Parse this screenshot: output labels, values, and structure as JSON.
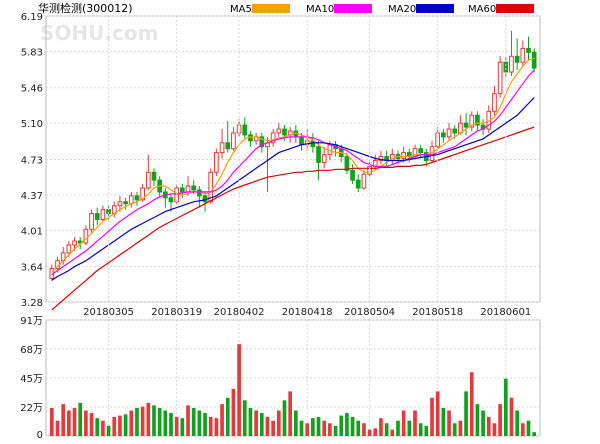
{
  "header": {
    "title": "华测检测(300012)",
    "watermark": "SOHU.com",
    "legend": [
      {
        "label": "MA5",
        "color": "#f5a000"
      },
      {
        "label": "MA10",
        "color": "#ff00ff"
      },
      {
        "label": "MA20",
        "color": "#0000c8"
      },
      {
        "label": "MA60",
        "color": "#e00000"
      }
    ]
  },
  "colors": {
    "up": "#e23b3b",
    "down": "#13a01e",
    "grid": "#d8d8d8"
  },
  "chart_data": [
    {
      "type": "candlestick",
      "title": "华测检测(300012)",
      "y_ticks": [
        6.19,
        5.83,
        5.46,
        5.1,
        4.73,
        4.37,
        4.01,
        3.64,
        3.28
      ],
      "ylim": [
        3.28,
        6.19
      ],
      "date_labels": [
        {
          "index": 10,
          "label": "20180305"
        },
        {
          "index": 22,
          "label": "20180319"
        },
        {
          "index": 33,
          "label": "20180402"
        },
        {
          "index": 45,
          "label": "20180418"
        },
        {
          "index": 56,
          "label": "20180504"
        },
        {
          "index": 68,
          "label": "20180518"
        },
        {
          "index": 80,
          "label": "20180601"
        }
      ],
      "candles": [
        [
          3.52,
          3.62,
          3.5,
          3.66
        ],
        [
          3.62,
          3.7,
          3.58,
          3.74
        ],
        [
          3.7,
          3.78,
          3.66,
          3.84
        ],
        [
          3.78,
          3.86,
          3.74,
          3.9
        ],
        [
          3.86,
          3.9,
          3.8,
          3.94
        ],
        [
          3.9,
          3.88,
          3.82,
          3.94
        ],
        [
          3.88,
          4.02,
          3.86,
          4.06
        ],
        [
          4.02,
          4.18,
          3.98,
          4.22
        ],
        [
          4.18,
          4.12,
          4.06,
          4.24
        ],
        [
          4.12,
          4.22,
          4.1,
          4.26
        ],
        [
          4.22,
          4.18,
          4.12,
          4.26
        ],
        [
          4.18,
          4.26,
          4.14,
          4.3
        ],
        [
          4.26,
          4.3,
          4.2,
          4.36
        ],
        [
          4.3,
          4.28,
          4.22,
          4.34
        ],
        [
          4.28,
          4.36,
          4.24,
          4.4
        ],
        [
          4.36,
          4.32,
          4.26,
          4.4
        ],
        [
          4.32,
          4.44,
          4.3,
          4.48
        ],
        [
          4.44,
          4.6,
          4.42,
          4.78
        ],
        [
          4.6,
          4.52,
          4.46,
          4.64
        ],
        [
          4.52,
          4.4,
          4.34,
          4.56
        ],
        [
          4.4,
          4.34,
          4.24,
          4.44
        ],
        [
          4.34,
          4.3,
          4.2,
          4.38
        ],
        [
          4.3,
          4.44,
          4.28,
          4.48
        ],
        [
          4.44,
          4.4,
          4.34,
          4.48
        ],
        [
          4.4,
          4.46,
          4.36,
          4.56
        ],
        [
          4.46,
          4.42,
          4.38,
          4.52
        ],
        [
          4.42,
          4.36,
          4.24,
          4.46
        ],
        [
          4.36,
          4.3,
          4.2,
          4.4
        ],
        [
          4.3,
          4.6,
          4.28,
          4.64
        ],
        [
          4.6,
          4.8,
          4.56,
          4.84
        ],
        [
          4.8,
          4.9,
          4.74,
          5.04
        ],
        [
          4.9,
          4.84,
          4.8,
          5.12
        ],
        [
          4.84,
          5.0,
          4.82,
          5.06
        ],
        [
          5.0,
          5.08,
          4.96,
          5.14
        ],
        [
          5.08,
          4.98,
          4.94,
          5.16
        ],
        [
          4.98,
          4.92,
          4.86,
          5.02
        ],
        [
          4.92,
          4.96,
          4.88,
          5.0
        ],
        [
          4.96,
          4.86,
          4.8,
          5.0
        ],
        [
          4.86,
          4.9,
          4.4,
          4.96
        ],
        [
          4.9,
          5.0,
          4.86,
          5.04
        ],
        [
          5.0,
          5.04,
          4.96,
          5.1
        ],
        [
          5.04,
          4.98,
          4.92,
          5.08
        ],
        [
          4.98,
          5.02,
          4.9,
          5.06
        ],
        [
          5.02,
          4.96,
          4.9,
          5.08
        ],
        [
          4.96,
          4.88,
          4.82,
          5.0
        ],
        [
          4.88,
          4.92,
          4.82,
          5.04
        ],
        [
          4.92,
          4.86,
          4.8,
          5.0
        ],
        [
          4.86,
          4.7,
          4.52,
          4.92
        ],
        [
          4.7,
          4.78,
          4.64,
          4.86
        ],
        [
          4.78,
          4.88,
          4.72,
          4.92
        ],
        [
          4.88,
          4.84,
          4.76,
          4.92
        ],
        [
          4.84,
          4.76,
          4.7,
          4.88
        ],
        [
          4.76,
          4.62,
          4.58,
          4.8
        ],
        [
          4.62,
          4.52,
          4.48,
          4.68
        ],
        [
          4.52,
          4.44,
          4.4,
          4.58
        ],
        [
          4.44,
          4.58,
          4.42,
          4.62
        ],
        [
          4.58,
          4.66,
          4.54,
          4.72
        ],
        [
          4.66,
          4.72,
          4.62,
          4.78
        ],
        [
          4.72,
          4.76,
          4.68,
          4.82
        ],
        [
          4.76,
          4.72,
          4.66,
          4.82
        ],
        [
          4.72,
          4.78,
          4.68,
          4.84
        ],
        [
          4.78,
          4.74,
          4.68,
          4.82
        ],
        [
          4.74,
          4.8,
          4.7,
          4.86
        ],
        [
          4.8,
          4.76,
          4.7,
          4.84
        ],
        [
          4.76,
          4.84,
          4.74,
          4.88
        ],
        [
          4.84,
          4.8,
          4.74,
          4.88
        ],
        [
          4.8,
          4.72,
          4.66,
          4.84
        ],
        [
          4.72,
          4.86,
          4.7,
          4.92
        ],
        [
          4.86,
          5.0,
          4.82,
          5.06
        ],
        [
          5.0,
          4.96,
          4.9,
          5.04
        ],
        [
          4.96,
          5.04,
          4.92,
          5.1
        ],
        [
          5.04,
          5.0,
          4.94,
          5.08
        ],
        [
          5.0,
          5.1,
          4.98,
          5.18
        ],
        [
          5.1,
          5.06,
          4.98,
          5.2
        ],
        [
          5.06,
          5.18,
          5.02,
          5.22
        ],
        [
          5.18,
          5.08,
          5.02,
          5.22
        ],
        [
          5.08,
          5.04,
          4.98,
          5.14
        ],
        [
          5.04,
          5.22,
          5.0,
          5.28
        ],
        [
          5.22,
          5.4,
          5.18,
          5.48
        ],
        [
          5.4,
          5.72,
          5.36,
          5.78
        ],
        [
          5.72,
          5.62,
          5.56,
          5.78
        ],
        [
          5.62,
          5.78,
          5.58,
          6.04
        ],
        [
          5.78,
          5.72,
          5.64,
          5.96
        ],
        [
          5.72,
          5.86,
          5.68,
          5.94
        ],
        [
          5.86,
          5.82,
          5.74,
          5.98
        ],
        [
          5.82,
          5.66,
          5.62,
          5.86
        ]
      ],
      "ma5": [
        3.58,
        3.64,
        3.7,
        3.76,
        3.82,
        3.87,
        3.92,
        3.98,
        4.04,
        4.1,
        4.14,
        4.18,
        4.22,
        4.25,
        4.28,
        4.3,
        4.33,
        4.38,
        4.44,
        4.46,
        4.46,
        4.42,
        4.38,
        4.37,
        4.38,
        4.4,
        4.4,
        4.38,
        4.4,
        4.48,
        4.58,
        4.7,
        4.8,
        4.88,
        4.94,
        4.96,
        4.96,
        4.94,
        4.92,
        4.93,
        4.95,
        4.96,
        4.98,
        5.0,
        4.98,
        4.96,
        4.93,
        4.88,
        4.84,
        4.82,
        4.8,
        4.8,
        4.78,
        4.72,
        4.64,
        4.6,
        4.6,
        4.62,
        4.66,
        4.7,
        4.74,
        4.76,
        4.76,
        4.76,
        4.78,
        4.78,
        4.78,
        4.8,
        4.84,
        4.88,
        4.92,
        4.96,
        5.0,
        5.04,
        5.08,
        5.1,
        5.1,
        5.12,
        5.16,
        5.26,
        5.4,
        5.52,
        5.6,
        5.68,
        5.74,
        5.76
      ],
      "ma10": [
        3.56,
        3.6,
        3.64,
        3.68,
        3.72,
        3.76,
        3.8,
        3.85,
        3.9,
        3.95,
        4.0,
        4.05,
        4.1,
        4.14,
        4.18,
        4.22,
        4.25,
        4.28,
        4.32,
        4.35,
        4.37,
        4.38,
        4.38,
        4.39,
        4.4,
        4.4,
        4.4,
        4.4,
        4.4,
        4.42,
        4.46,
        4.52,
        4.6,
        4.66,
        4.72,
        4.78,
        4.84,
        4.88,
        4.9,
        4.92,
        4.94,
        4.95,
        4.96,
        4.96,
        4.96,
        4.96,
        4.95,
        4.93,
        4.9,
        4.88,
        4.86,
        4.84,
        4.82,
        4.78,
        4.74,
        4.7,
        4.68,
        4.66,
        4.66,
        4.66,
        4.68,
        4.7,
        4.72,
        4.74,
        4.76,
        4.78,
        4.78,
        4.78,
        4.8,
        4.82,
        4.84,
        4.86,
        4.9,
        4.94,
        4.98,
        5.02,
        5.04,
        5.08,
        5.12,
        5.18,
        5.26,
        5.34,
        5.42,
        5.5,
        5.58,
        5.64
      ],
      "ma20": [
        3.5,
        3.54,
        3.57,
        3.6,
        3.64,
        3.67,
        3.7,
        3.74,
        3.78,
        3.82,
        3.86,
        3.9,
        3.94,
        3.98,
        4.02,
        4.05,
        4.08,
        4.11,
        4.14,
        4.17,
        4.2,
        4.22,
        4.24,
        4.26,
        4.28,
        4.3,
        4.31,
        4.32,
        4.34,
        4.36,
        4.4,
        4.44,
        4.48,
        4.52,
        4.56,
        4.6,
        4.64,
        4.68,
        4.72,
        4.76,
        4.8,
        4.82,
        4.84,
        4.86,
        4.88,
        4.89,
        4.9,
        4.9,
        4.9,
        4.89,
        4.88,
        4.86,
        4.84,
        4.82,
        4.8,
        4.78,
        4.76,
        4.74,
        4.73,
        4.72,
        4.72,
        4.72,
        4.72,
        4.73,
        4.74,
        4.75,
        4.76,
        4.77,
        4.78,
        4.8,
        4.82,
        4.84,
        4.86,
        4.88,
        4.9,
        4.92,
        4.94,
        4.98,
        5.02,
        5.06,
        5.1,
        5.14,
        5.18,
        5.24,
        5.3,
        5.36
      ],
      "ma60": [
        3.2,
        3.25,
        3.3,
        3.35,
        3.4,
        3.45,
        3.5,
        3.55,
        3.6,
        3.64,
        3.68,
        3.72,
        3.76,
        3.8,
        3.84,
        3.88,
        3.92,
        3.96,
        4.0,
        4.04,
        4.07,
        4.1,
        4.13,
        4.16,
        4.19,
        4.22,
        4.25,
        4.28,
        4.31,
        4.34,
        4.37,
        4.4,
        4.43,
        4.45,
        4.47,
        4.49,
        4.51,
        4.53,
        4.55,
        4.56,
        4.57,
        4.58,
        4.59,
        4.6,
        4.6,
        4.61,
        4.61,
        4.62,
        4.62,
        4.62,
        4.63,
        4.63,
        4.63,
        4.64,
        4.64,
        4.64,
        4.64,
        4.64,
        4.65,
        4.65,
        4.65,
        4.66,
        4.66,
        4.66,
        4.67,
        4.67,
        4.68,
        4.7,
        4.72,
        4.74,
        4.76,
        4.78,
        4.8,
        4.82,
        4.84,
        4.86,
        4.88,
        4.9,
        4.92,
        4.94,
        4.96,
        4.98,
        5.0,
        5.02,
        5.04,
        5.06
      ]
    },
    {
      "type": "bar",
      "title": "",
      "y_ticks": [
        "91万",
        "68万",
        "45万",
        "22万",
        "0"
      ],
      "ylim": [
        0,
        91
      ],
      "values": [
        22,
        12,
        25,
        20,
        22,
        26,
        20,
        18,
        14,
        12,
        8,
        15,
        16,
        17,
        20,
        22,
        23,
        26,
        24,
        22,
        20,
        18,
        15,
        14,
        24,
        22,
        20,
        18,
        15,
        14,
        25,
        30,
        37,
        72,
        28,
        22,
        20,
        18,
        15,
        12,
        20,
        28,
        35,
        20,
        12,
        10,
        14,
        15,
        12,
        10,
        8,
        16,
        18,
        15,
        12,
        10,
        5,
        6,
        14,
        10,
        5,
        12,
        20,
        12,
        20,
        10,
        8,
        30,
        35,
        22,
        20,
        10,
        12,
        35,
        50,
        25,
        20,
        15,
        10,
        25,
        45,
        30,
        20,
        10,
        12,
        3
      ]
    }
  ]
}
